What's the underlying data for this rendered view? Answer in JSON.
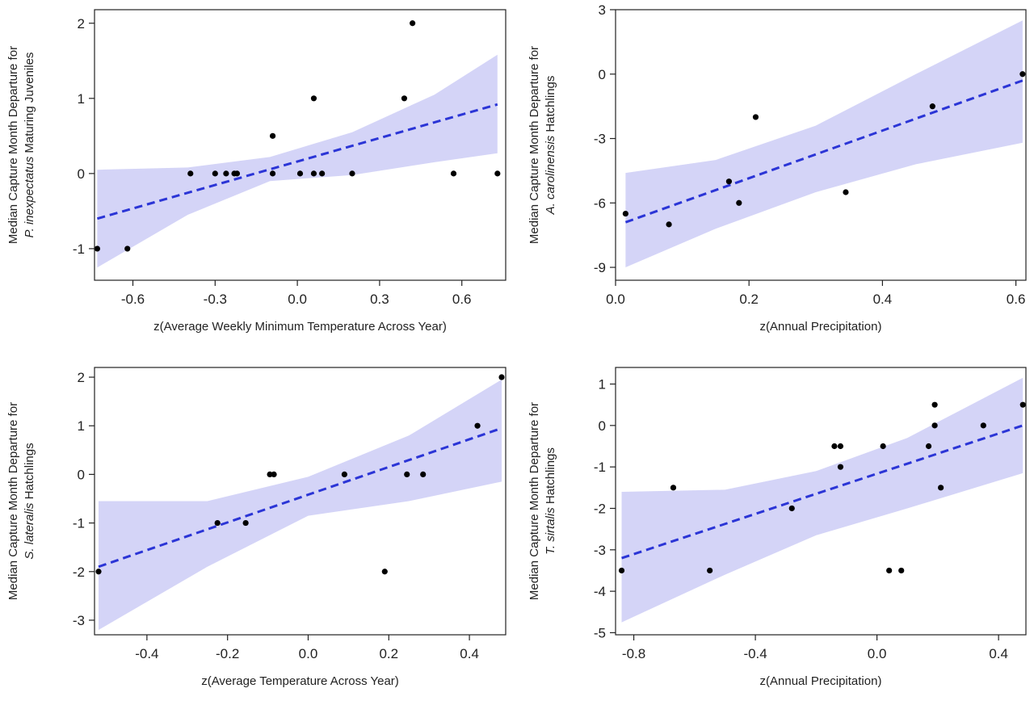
{
  "chart_data": [
    {
      "type": "scatter",
      "ylabel_line1": "Median Capture Month Departure for",
      "ylabel_line2": [
        {
          "text": "P. inexpectatus",
          "italic": true
        },
        {
          "text": " Maturing Juveniles",
          "italic": false
        }
      ],
      "xlabel": "z(Average Weekly Minimum Temperature Across Year)",
      "xlim": [
        -0.74,
        0.76
      ],
      "ylim": [
        -1.42,
        2.18
      ],
      "xticks": [
        -0.6,
        -0.3,
        0.0,
        0.3,
        0.6
      ],
      "xtick_labels": [
        "-0.6",
        "-0.3",
        "0.0",
        "0.3",
        "0.6"
      ],
      "yticks": [
        -1,
        0,
        1,
        2
      ],
      "ytick_labels": [
        "-1",
        "0",
        "1",
        "2"
      ],
      "points": [
        {
          "x": -0.73,
          "y": -1
        },
        {
          "x": -0.62,
          "y": -1
        },
        {
          "x": -0.39,
          "y": 0
        },
        {
          "x": -0.3,
          "y": 0
        },
        {
          "x": -0.26,
          "y": 0
        },
        {
          "x": -0.23,
          "y": 0
        },
        {
          "x": -0.22,
          "y": 0
        },
        {
          "x": -0.09,
          "y": 0.5
        },
        {
          "x": -0.09,
          "y": 0
        },
        {
          "x": 0.01,
          "y": 0
        },
        {
          "x": 0.06,
          "y": 1
        },
        {
          "x": 0.06,
          "y": 0
        },
        {
          "x": 0.09,
          "y": 0
        },
        {
          "x": 0.2,
          "y": 0
        },
        {
          "x": 0.39,
          "y": 1
        },
        {
          "x": 0.42,
          "y": 2
        },
        {
          "x": 0.57,
          "y": 0
        },
        {
          "x": 0.73,
          "y": 0
        }
      ],
      "fit": {
        "x": [
          -0.73,
          0.73
        ],
        "y": [
          -0.6,
          0.92
        ]
      },
      "band": {
        "x": [
          -0.73,
          -0.4,
          -0.1,
          0.2,
          0.5,
          0.73
        ],
        "lower": [
          -1.25,
          -0.55,
          -0.1,
          -0.02,
          0.15,
          0.27
        ],
        "upper": [
          0.05,
          0.08,
          0.22,
          0.55,
          1.05,
          1.58
        ]
      },
      "fit_color": "#2b35d6",
      "band_color": "#d4d4f7"
    },
    {
      "type": "scatter",
      "ylabel_line1": "Median Capture Month Departure for",
      "ylabel_line2": [
        {
          "text": "A. carolinensis",
          "italic": true
        },
        {
          "text": " Hatchlings",
          "italic": false
        }
      ],
      "xlabel": "z(Annual Precipitation)",
      "xlim": [
        0.0,
        0.615
      ],
      "ylim": [
        -9.6,
        3.0
      ],
      "xticks": [
        0.0,
        0.2,
        0.4,
        0.6
      ],
      "xtick_labels": [
        "0.0",
        "0.2",
        "0.4",
        "0.6"
      ],
      "yticks": [
        -9,
        -6,
        -3,
        0,
        3
      ],
      "ytick_labels": [
        "-9",
        "-6",
        "-3",
        "0",
        "3"
      ],
      "points": [
        {
          "x": 0.015,
          "y": -6.5
        },
        {
          "x": 0.08,
          "y": -7.0
        },
        {
          "x": 0.17,
          "y": -5.0
        },
        {
          "x": 0.185,
          "y": -6.0
        },
        {
          "x": 0.21,
          "y": -2.0
        },
        {
          "x": 0.345,
          "y": -5.5
        },
        {
          "x": 0.475,
          "y": -1.5
        },
        {
          "x": 0.61,
          "y": 0.0
        }
      ],
      "fit": {
        "x": [
          0.015,
          0.61
        ],
        "y": [
          -6.9,
          -0.3
        ]
      },
      "band": {
        "x": [
          0.015,
          0.15,
          0.3,
          0.45,
          0.61
        ],
        "lower": [
          -9.0,
          -7.2,
          -5.5,
          -4.2,
          -3.2
        ],
        "upper": [
          -4.6,
          -4.0,
          -2.4,
          0.0,
          2.5
        ]
      },
      "fit_color": "#2b35d6",
      "band_color": "#d4d4f7"
    },
    {
      "type": "scatter",
      "ylabel_line1": "Median Capture Month Departure for",
      "ylabel_line2": [
        {
          "text": "S. lateralis",
          "italic": true
        },
        {
          "text": " Hatchlings",
          "italic": false
        }
      ],
      "xlabel": "z(Average Temperature Across Year)",
      "xlim": [
        -0.53,
        0.49
      ],
      "ylim": [
        -3.3,
        2.2
      ],
      "xticks": [
        -0.4,
        -0.2,
        0.0,
        0.2,
        0.4
      ],
      "xtick_labels": [
        "-0.4",
        "-0.2",
        "0.0",
        "0.2",
        "0.4"
      ],
      "yticks": [
        -3,
        -2,
        -1,
        0,
        1,
        2
      ],
      "ytick_labels": [
        "-3",
        "-2",
        "-1",
        "0",
        "1",
        "2"
      ],
      "points": [
        {
          "x": -0.52,
          "y": -2
        },
        {
          "x": -0.225,
          "y": -1
        },
        {
          "x": -0.155,
          "y": -1
        },
        {
          "x": -0.095,
          "y": 0
        },
        {
          "x": -0.085,
          "y": 0
        },
        {
          "x": 0.09,
          "y": 0
        },
        {
          "x": 0.19,
          "y": -2
        },
        {
          "x": 0.245,
          "y": 0
        },
        {
          "x": 0.285,
          "y": 0
        },
        {
          "x": 0.42,
          "y": 1
        },
        {
          "x": 0.48,
          "y": 2
        }
      ],
      "fit": {
        "x": [
          -0.52,
          0.48
        ],
        "y": [
          -1.9,
          0.95
        ]
      },
      "band": {
        "x": [
          -0.52,
          -0.25,
          0.0,
          0.25,
          0.48
        ],
        "lower": [
          -3.2,
          -1.9,
          -0.85,
          -0.55,
          -0.15
        ],
        "upper": [
          -0.55,
          -0.55,
          -0.05,
          0.8,
          1.95
        ]
      },
      "fit_color": "#2b35d6",
      "band_color": "#d4d4f7"
    },
    {
      "type": "scatter",
      "ylabel_line1": "Median Capture Month Departure for",
      "ylabel_line2": [
        {
          "text": "T. sirtalis",
          "italic": true
        },
        {
          "text": " Hatchlings",
          "italic": false
        }
      ],
      "xlabel": "z(Annual Precipitation)",
      "xlim": [
        -0.86,
        0.49
      ],
      "ylim": [
        -5.05,
        1.4
      ],
      "xticks": [
        -0.8,
        -0.4,
        0.0,
        0.4
      ],
      "xtick_labels": [
        "-0.8",
        "-0.4",
        "0.0",
        "0.4"
      ],
      "yticks": [
        -5,
        -4,
        -3,
        -2,
        -1,
        0,
        1
      ],
      "ytick_labels": [
        "-5",
        "-4",
        "-3",
        "-2",
        "-1",
        "0",
        "1"
      ],
      "points": [
        {
          "x": -0.84,
          "y": -3.5
        },
        {
          "x": -0.67,
          "y": -1.5
        },
        {
          "x": -0.55,
          "y": -3.5
        },
        {
          "x": -0.28,
          "y": -2.0
        },
        {
          "x": -0.14,
          "y": -0.5
        },
        {
          "x": -0.12,
          "y": -0.5
        },
        {
          "x": -0.12,
          "y": -1.0
        },
        {
          "x": 0.02,
          "y": -0.5
        },
        {
          "x": 0.04,
          "y": -3.5
        },
        {
          "x": 0.08,
          "y": -3.5
        },
        {
          "x": 0.17,
          "y": -0.5
        },
        {
          "x": 0.19,
          "y": 0.5
        },
        {
          "x": 0.19,
          "y": 0.0
        },
        {
          "x": 0.21,
          "y": -1.5
        },
        {
          "x": 0.35,
          "y": 0.0
        },
        {
          "x": 0.48,
          "y": 0.5
        }
      ],
      "fit": {
        "x": [
          -0.84,
          0.48
        ],
        "y": [
          -3.2,
          0.0
        ]
      },
      "band": {
        "x": [
          -0.84,
          -0.5,
          -0.2,
          0.1,
          0.48
        ],
        "lower": [
          -4.75,
          -3.6,
          -2.65,
          -2.0,
          -1.15
        ],
        "upper": [
          -1.6,
          -1.55,
          -1.1,
          -0.3,
          1.15
        ]
      },
      "fit_color": "#2b35d6",
      "band_color": "#d4d4f7"
    }
  ]
}
